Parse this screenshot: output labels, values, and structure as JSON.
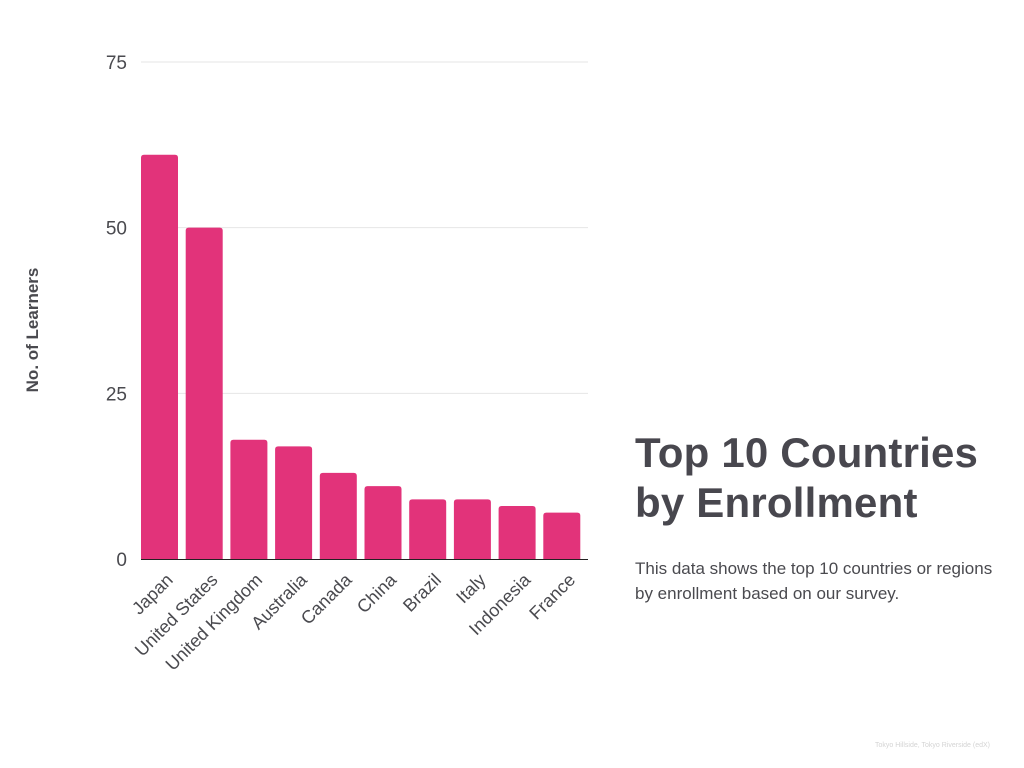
{
  "chart_data": {
    "type": "bar",
    "title": "Top 10 Countries by Enrollment",
    "subtitle": "This data shows the top 10 countries or regions by enrollment based on our survey.",
    "xlabel": "",
    "ylabel": "No. of Learners",
    "categories": [
      "Japan",
      "United States",
      "United Kingdom",
      "Australia",
      "Canada",
      "China",
      "Brazil",
      "Italy",
      "Indonesia",
      "France"
    ],
    "values": [
      61,
      50,
      18,
      17,
      13,
      11,
      9,
      9,
      8,
      7
    ],
    "ylim": [
      0,
      75
    ],
    "yticks": [
      "0",
      "25",
      "50",
      "75"
    ],
    "grid": true,
    "legend": "none",
    "source": "Tokyo Hillside, Tokyo Riverside (edX)",
    "colors": {
      "bar": "#e2337a",
      "grid": "#e6e6e6",
      "axis": "#222222",
      "text": "#4a4a4f"
    }
  }
}
